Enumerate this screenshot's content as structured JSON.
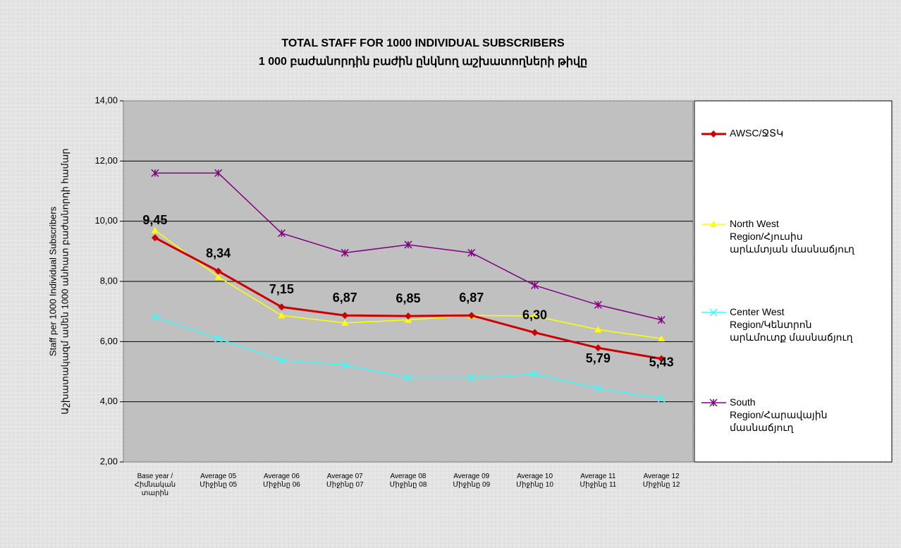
{
  "chart_data": {
    "type": "line",
    "title": "TOTAL STAFF FOR 1000 INDIVIDUAL SUBSCRIBERS",
    "subtitle": "1 000 բաժանորդին բաժին ընկնող աշխատողների թիվը",
    "y_label": "Staff per 1000 Individual Subscribers",
    "y_label_2": "Աշխատակազմ ամեն 1000 անհատ բաժանորդի համար",
    "categories": [
      "Base year /\nՀիմնական\nտարին",
      "Average 05\nՄիջինը 05",
      "Average 06\nՄիջինը 06",
      "Average 07\nՄիջինը 07",
      "Average 08\nՄիջինը 08",
      "Average 09\nՄիջինը 09",
      "Average 10\nՄիջինը 10",
      "Average 11\nՄիջինը 11",
      "Average 12\nՄիջինը 12"
    ],
    "series": [
      {
        "name": "AWSC/ՋՏԿ",
        "color": "#cc0000",
        "marker": "diamond",
        "values": [
          9.45,
          8.34,
          7.15,
          6.87,
          6.85,
          6.87,
          6.3,
          5.79,
          5.43
        ],
        "value_labels": [
          "9,45",
          "8,34",
          "7,15",
          "6,87",
          "6,85",
          "6,87",
          "6,30",
          "5,79",
          "5,43"
        ]
      },
      {
        "name": "North West\nRegion/Հյուսիս\nարևմտյան մասնաճյուղ",
        "color": "#ffff00",
        "marker": "triangle",
        "values": [
          9.7,
          8.15,
          6.87,
          6.62,
          6.72,
          6.87,
          6.85,
          6.4,
          6.1
        ]
      },
      {
        "name": "Center West\nRegion/Կենտրոն\nարևմուտք մասնաճյուղ",
        "color": "#33ffff",
        "marker": "x",
        "values": [
          6.82,
          6.1,
          5.38,
          5.22,
          4.8,
          4.8,
          4.92,
          4.45,
          4.1
        ]
      },
      {
        "name": "South\nRegion/Հարավային\nմասնաճյուղ",
        "color": "#800080",
        "marker": "star",
        "values": [
          11.6,
          11.6,
          9.6,
          8.95,
          9.22,
          8.95,
          7.87,
          7.22,
          6.72
        ]
      }
    ],
    "ylim": [
      2,
      14
    ],
    "yticks": [
      {
        "value": 2,
        "label": "2,00"
      },
      {
        "value": 4,
        "label": "4,00"
      },
      {
        "value": 6,
        "label": "6,00"
      },
      {
        "value": 8,
        "label": "8,00"
      },
      {
        "value": 10,
        "label": "10,00"
      },
      {
        "value": 12,
        "label": "12,00"
      },
      {
        "value": 14,
        "label": "14,00"
      }
    ],
    "grid": true,
    "legend": "right"
  }
}
